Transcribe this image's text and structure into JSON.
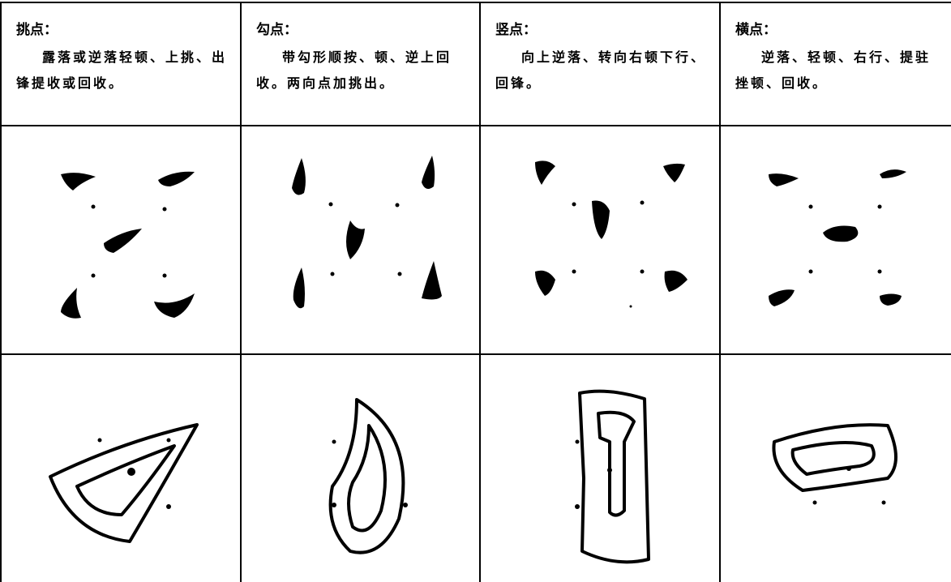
{
  "columns": [
    {
      "title": "挑点：",
      "text": "露落或逆落轻顿、上挑、出锋提收或回收。"
    },
    {
      "title": "勾点：",
      "text": "带勾形顺按、顿、逆上回收。两向点加挑出。"
    },
    {
      "title": "竖点：",
      "text": "向上逆落、转向右顿下行、回锋。"
    },
    {
      "title": "横点：",
      "text": "逆落、轻顿、右行、提驻挫顿、回收。"
    }
  ]
}
